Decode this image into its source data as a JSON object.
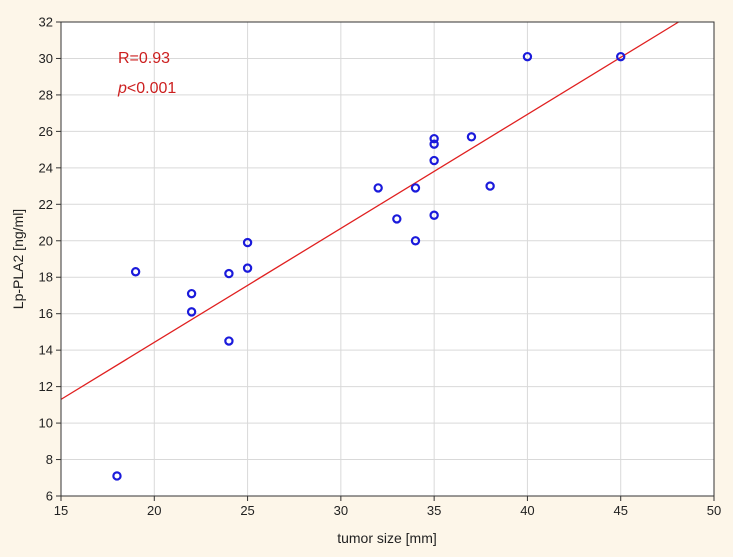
{
  "chart_data": {
    "type": "scatter",
    "xlabel": "tumor size [mm]",
    "ylabel": "Lp-PLA2 [ng/ml]",
    "xlim": [
      15,
      50
    ],
    "ylim": [
      6,
      32
    ],
    "x_ticks": [
      15,
      20,
      25,
      30,
      35,
      40,
      45,
      50
    ],
    "y_ticks": [
      6,
      8,
      10,
      12,
      14,
      16,
      18,
      20,
      22,
      24,
      26,
      28,
      30,
      32
    ],
    "grid": true,
    "points": [
      {
        "x": 18,
        "y": 7.1
      },
      {
        "x": 19,
        "y": 18.3
      },
      {
        "x": 22,
        "y": 17.1
      },
      {
        "x": 22,
        "y": 16.1
      },
      {
        "x": 24,
        "y": 18.2
      },
      {
        "x": 24,
        "y": 14.5
      },
      {
        "x": 25,
        "y": 19.9
      },
      {
        "x": 25,
        "y": 18.5
      },
      {
        "x": 32,
        "y": 22.9
      },
      {
        "x": 33,
        "y": 21.2
      },
      {
        "x": 34,
        "y": 22.9
      },
      {
        "x": 34,
        "y": 20.0
      },
      {
        "x": 35,
        "y": 25.6
      },
      {
        "x": 35,
        "y": 25.3
      },
      {
        "x": 35,
        "y": 24.4
      },
      {
        "x": 35,
        "y": 21.4
      },
      {
        "x": 37,
        "y": 25.7
      },
      {
        "x": 38,
        "y": 23.0
      },
      {
        "x": 40,
        "y": 30.1
      },
      {
        "x": 45,
        "y": 30.1
      }
    ],
    "regression_line": {
      "x": [
        15,
        48.1
      ],
      "y": [
        11.3,
        32
      ]
    },
    "annotations": {
      "r_text": "R=0.93",
      "p_symbol": "p",
      "p_value": "<0.001"
    },
    "colors": {
      "points": "#1a1adb",
      "line": "#e02020",
      "annotation": "#cc1f1f",
      "grid": "#d9d9d9",
      "plot_bg": "#ffffff",
      "page_bg": "#fdf6e9"
    }
  }
}
